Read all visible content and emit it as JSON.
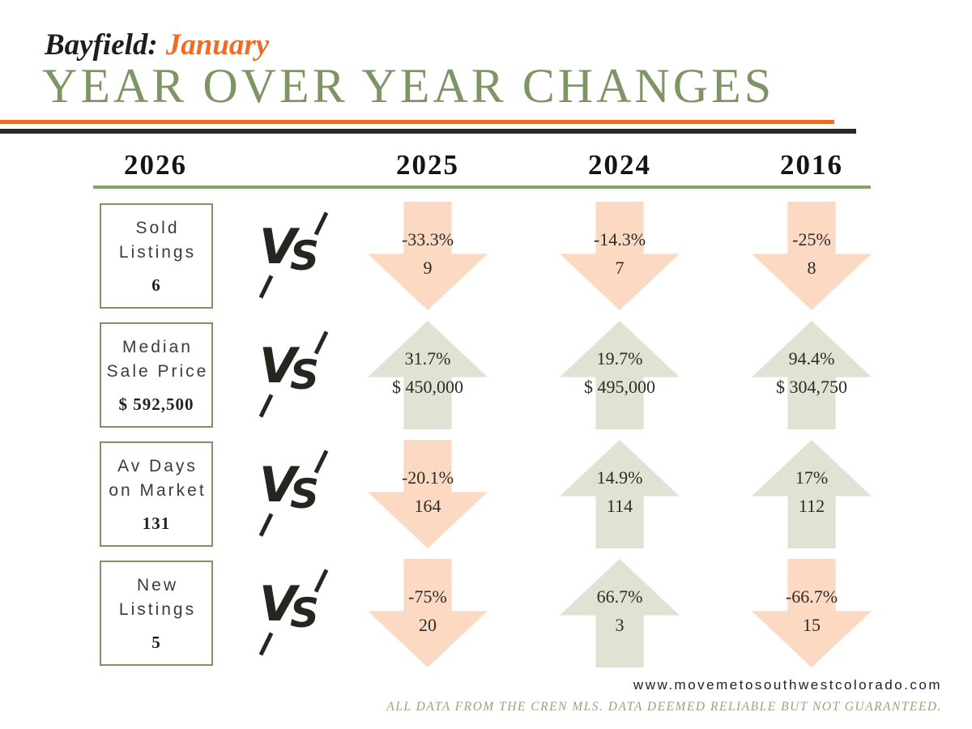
{
  "header": {
    "location": "Bayfield:",
    "month": "January",
    "title": "YEAR OVER YEAR CHANGES"
  },
  "columns": [
    "2026",
    "2025",
    "2024",
    "2016"
  ],
  "vs": {
    "v": "V",
    "s": "S"
  },
  "rows": [
    {
      "label": "Sold\nListings",
      "current": "6",
      "comparisons": [
        {
          "direction": "down",
          "pct": "-33.3%",
          "value": "9"
        },
        {
          "direction": "down",
          "pct": "-14.3%",
          "value": "7"
        },
        {
          "direction": "down",
          "pct": "-25%",
          "value": "8"
        }
      ]
    },
    {
      "label": "Median\nSale Price",
      "current": "$ 592,500",
      "comparisons": [
        {
          "direction": "up",
          "pct": "31.7%",
          "value": "$ 450,000"
        },
        {
          "direction": "up",
          "pct": "19.7%",
          "value": "$ 495,000"
        },
        {
          "direction": "up",
          "pct": "94.4%",
          "value": "$ 304,750"
        }
      ]
    },
    {
      "label": "Av Days\non Market",
      "current": "131",
      "comparisons": [
        {
          "direction": "down",
          "pct": "-20.1%",
          "value": "164"
        },
        {
          "direction": "up",
          "pct": "14.9%",
          "value": "114"
        },
        {
          "direction": "up",
          "pct": "17%",
          "value": "112"
        }
      ]
    },
    {
      "label": "New\nListings",
      "current": "5",
      "comparisons": [
        {
          "direction": "down",
          "pct": "-75%",
          "value": "20"
        },
        {
          "direction": "up",
          "pct": "66.7%",
          "value": "3"
        },
        {
          "direction": "down",
          "pct": "-66.7%",
          "value": "15"
        }
      ]
    }
  ],
  "footer": {
    "website": "www.movemetosouthwestcolorado.com",
    "disclaimer": "ALL DATA FROM THE CREN MLS. DATA DEEMED RELIABLE BUT NOT GUARANTEED."
  },
  "colors": {
    "accent_orange": "#ee6c23",
    "title_green": "#7d9464",
    "rule_green": "#86a266",
    "rule_dark": "#2a2a22",
    "arrow_up_green": "#dee3d4",
    "arrow_down_peach": "#fbd9c3",
    "box_border_green": "#7d9464"
  },
  "chart_data": {
    "type": "table",
    "title": "Bayfield: January — Year Over Year Changes",
    "categories": [
      "2026",
      "2025",
      "2024",
      "2016"
    ],
    "series": [
      {
        "name": "Sold Listings",
        "values": [
          6,
          9,
          7,
          8
        ],
        "pct_change_vs_2026": [
          null,
          -33.3,
          -14.3,
          -25
        ]
      },
      {
        "name": "Median Sale Price",
        "values": [
          592500,
          450000,
          495000,
          304750
        ],
        "pct_change_vs_2026": [
          null,
          31.7,
          19.7,
          94.4
        ]
      },
      {
        "name": "Av Days on Market",
        "values": [
          131,
          164,
          114,
          112
        ],
        "pct_change_vs_2026": [
          null,
          -20.1,
          14.9,
          17
        ]
      },
      {
        "name": "New Listings",
        "values": [
          5,
          20,
          3,
          15
        ],
        "pct_change_vs_2026": [
          null,
          -75,
          66.7,
          -66.7
        ]
      }
    ],
    "legend": "peach down-arrow = decrease vs 2026, green up-arrow = increase vs 2026"
  }
}
